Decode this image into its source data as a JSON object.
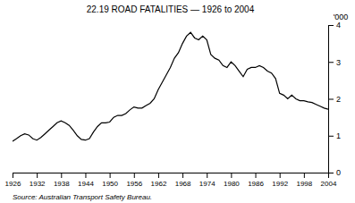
{
  "chart_data": {
    "type": "line",
    "title": "22.19   ROAD FATALITIES — 1926 to 2004",
    "ylabel": "'000",
    "source": "Source: Australian Transport Safety Bureau.",
    "color": "#000000",
    "xlim": [
      1926,
      2004
    ],
    "ylim": [
      0,
      4
    ],
    "xticks": [
      1926,
      1932,
      1938,
      1944,
      1950,
      1956,
      1962,
      1968,
      1974,
      1980,
      1986,
      1992,
      1998,
      2004
    ],
    "yticks": [
      0,
      1,
      2,
      3,
      4
    ],
    "x": [
      1926,
      1927,
      1928,
      1929,
      1930,
      1931,
      1932,
      1933,
      1934,
      1935,
      1936,
      1937,
      1938,
      1939,
      1940,
      1941,
      1942,
      1943,
      1944,
      1945,
      1946,
      1947,
      1948,
      1949,
      1950,
      1951,
      1952,
      1953,
      1954,
      1955,
      1956,
      1957,
      1958,
      1959,
      1960,
      1961,
      1962,
      1963,
      1964,
      1965,
      1966,
      1967,
      1968,
      1969,
      1970,
      1971,
      1972,
      1973,
      1974,
      1975,
      1976,
      1977,
      1978,
      1979,
      1980,
      1981,
      1982,
      1983,
      1984,
      1985,
      1986,
      1987,
      1988,
      1989,
      1990,
      1991,
      1992,
      1993,
      1994,
      1995,
      1996,
      1997,
      1998,
      1999,
      2000,
      2001,
      2002,
      2003,
      2004
    ],
    "values": [
      0.85,
      0.92,
      1.0,
      1.05,
      1.02,
      0.92,
      0.88,
      0.95,
      1.05,
      1.15,
      1.25,
      1.35,
      1.4,
      1.35,
      1.28,
      1.15,
      1.0,
      0.9,
      0.88,
      0.92,
      1.1,
      1.25,
      1.35,
      1.35,
      1.37,
      1.5,
      1.55,
      1.55,
      1.6,
      1.7,
      1.78,
      1.75,
      1.75,
      1.82,
      1.88,
      2.0,
      2.25,
      2.45,
      2.65,
      2.85,
      3.1,
      3.25,
      3.5,
      3.7,
      3.8,
      3.65,
      3.6,
      3.7,
      3.6,
      3.2,
      3.1,
      3.05,
      2.9,
      2.85,
      3.0,
      2.9,
      2.75,
      2.6,
      2.8,
      2.85,
      2.85,
      2.9,
      2.85,
      2.75,
      2.7,
      2.55,
      2.15,
      2.1,
      2.0,
      2.1,
      2.0,
      1.95,
      1.95,
      1.92,
      1.9,
      1.85,
      1.8,
      1.75,
      1.72
    ]
  }
}
